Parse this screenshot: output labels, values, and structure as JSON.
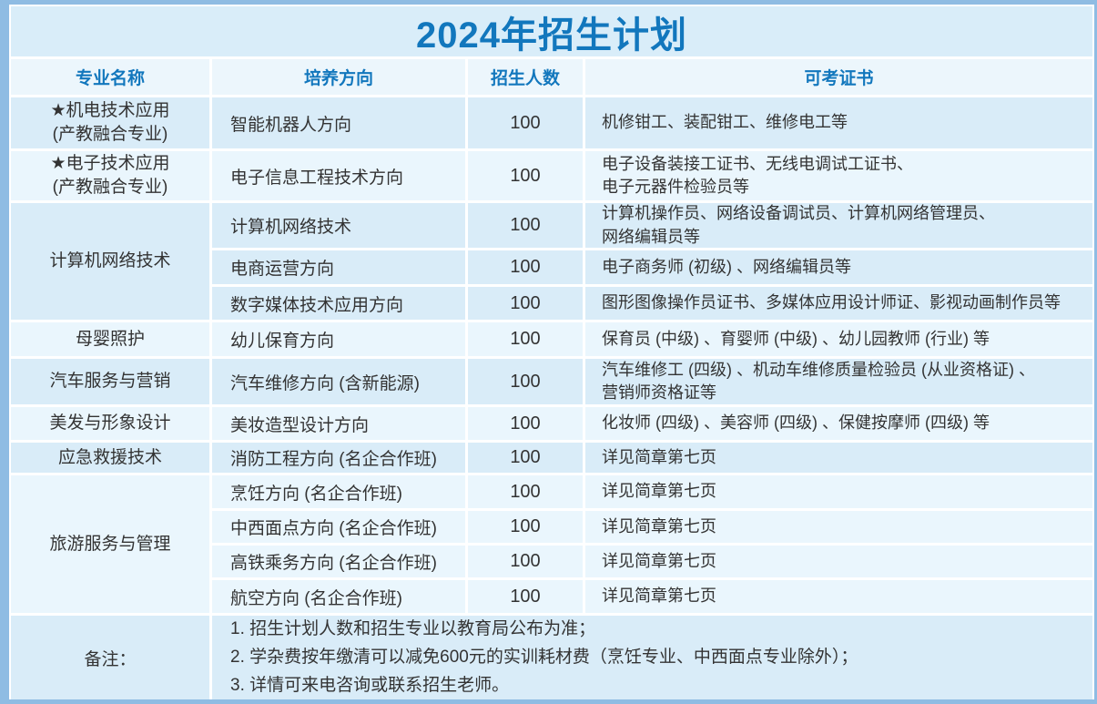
{
  "title": "2024年招生计划",
  "colors": {
    "accent_blue": "#1277bd",
    "frame_blue": "#8fbce3",
    "row_blue": "#d9ecf8",
    "row_light": "#eaf6fd",
    "title_bg": "#d9edf9",
    "header_bg": "#ecf6fc"
  },
  "table": {
    "headers": [
      "专业名称",
      "培养方向",
      "招生人数",
      "可考证书"
    ],
    "groups": [
      {
        "major": "★机电技术应用\n(产教融合专业)",
        "rows": [
          {
            "direction": "智能机器人方向",
            "count": "100",
            "certs": "机修钳工、装配钳工、维修电工等"
          }
        ]
      },
      {
        "major": "★电子技术应用\n(产教融合专业)",
        "rows": [
          {
            "direction": "电子信息工程技术方向",
            "count": "100",
            "certs": "电子设备装接工证书、无线电调试工证书、\n电子元器件检验员等"
          }
        ]
      },
      {
        "major": "计算机网络技术",
        "rows": [
          {
            "direction": "计算机网络技术",
            "count": "100",
            "certs": "计算机操作员、网络设备调试员、计算机网络管理员、\n网络编辑员等"
          },
          {
            "direction": "电商运营方向",
            "count": "100",
            "certs": "电子商务师 (初级) 、网络编辑员等"
          },
          {
            "direction": "数字媒体技术应用方向",
            "count": "100",
            "certs": "图形图像操作员证书、多媒体应用设计师证、影视动画制作员等"
          }
        ]
      },
      {
        "major": "母婴照护",
        "rows": [
          {
            "direction": "幼儿保育方向",
            "count": "100",
            "certs": "保育员 (中级) 、育婴师 (中级) 、幼儿园教师 (行业) 等"
          }
        ]
      },
      {
        "major": "汽车服务与营销",
        "rows": [
          {
            "direction": "汽车维修方向 (含新能源)",
            "count": "100",
            "certs": "汽车维修工 (四级) 、机动车维修质量检验员 (从业资格证) 、\n营销师资格证等"
          }
        ]
      },
      {
        "major": "美发与形象设计",
        "rows": [
          {
            "direction": "美妆造型设计方向",
            "count": "100",
            "certs": "化妆师 (四级) 、美容师 (四级) 、保健按摩师 (四级) 等"
          }
        ]
      },
      {
        "major": "应急救援技术",
        "rows": [
          {
            "direction": "消防工程方向 (名企合作班)",
            "count": "100",
            "certs": "详见简章第七页"
          }
        ]
      },
      {
        "major": "旅游服务与管理",
        "rows": [
          {
            "direction": "烹饪方向 (名企合作班)",
            "count": "100",
            "certs": "详见简章第七页"
          },
          {
            "direction": "中西面点方向 (名企合作班)",
            "count": "100",
            "certs": "详见简章第七页"
          },
          {
            "direction": "高铁乘务方向 (名企合作班)",
            "count": "100",
            "certs": "详见简章第七页"
          },
          {
            "direction": "航空方向 (名企合作班)",
            "count": "100",
            "certs": "详见简章第七页"
          }
        ]
      }
    ]
  },
  "notes": {
    "label": "备注：",
    "items": [
      "1. 招生计划人数和招生专业以教育局公布为准；",
      "2. 学杂费按年缴清可以减免600元的实训耗材费（烹饪专业、中西面点专业除外）；",
      "3. 详情可来电咨询或联系招生老师。"
    ]
  }
}
